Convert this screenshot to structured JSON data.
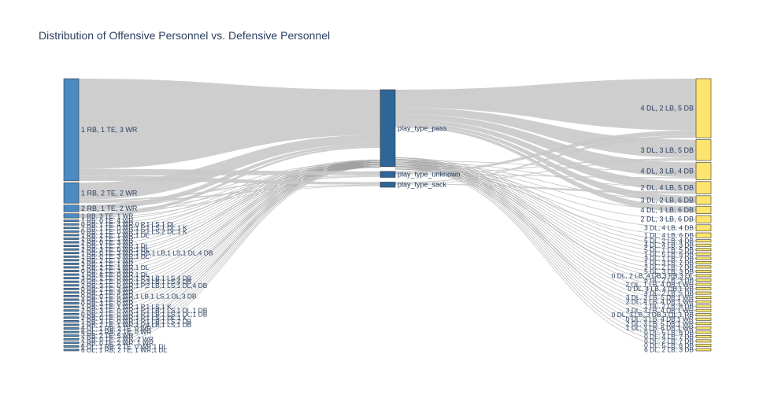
{
  "chart_data": {
    "type": "sankey",
    "title": "Distribution of Offensive Personnel vs. Defensive Personnel",
    "colors": {
      "offense": "#4b8bc4",
      "play": "#2f6698",
      "defense": "#fde46f",
      "link": "#c9c9c9",
      "thin_link": "#9a9a9a",
      "node_stroke": "#333333"
    },
    "offense_nodes": [
      {
        "label": "1 RB, 1 TE, 3 WR",
        "value": 60
      },
      {
        "label": "1 RB, 2 TE, 2 WR",
        "value": 12
      },
      {
        "label": "2 RB, 1 TE, 2 WR",
        "value": 4
      },
      {
        "label": "1 RB, 3 TE, 1 WR",
        "value": 2.5
      },
      {
        "label": "1 RB, 0 TE, 4 WR",
        "value": 1
      },
      {
        "label": "0 RB, 1 TE, 4 WR,0 P,1 LS,1 DL",
        "value": 1
      },
      {
        "label": "2 RB, 1 TE, 0 WR,1 P,1 LS,1 DL,1 K",
        "value": 1
      },
      {
        "label": "0 RB, 1 TE, 0 WR,1 P,1 LS,2 DL,1 K",
        "value": 1
      },
      {
        "label": "1 RB, 2 TE, 1 WR,1 DL",
        "value": 1
      },
      {
        "label": "2 RB, 2 TE, 1 WR",
        "value": 1
      },
      {
        "label": "2 RB, 0 TE, 3 WR",
        "value": 1
      },
      {
        "label": "1 RB, 1 TE, 2 WR,1 DL",
        "value": 1
      },
      {
        "label": "2 RB, 3 TE, 0 WR,1 DL",
        "value": 1
      },
      {
        "label": "1 RB, 0 TE, 3 WR,1 DB,1 LB,1 LS,1 DL,4 DB",
        "value": 1
      },
      {
        "label": "1 RB, 0 TE, 3 WR,1 DL",
        "value": 1
      },
      {
        "label": "2 RB, 2 TE, 1 WR",
        "value": 1
      },
      {
        "label": "3 RB, 1 TE, 1 WR",
        "value": 1
      },
      {
        "label": "1 RB, 2 TE, 1 WR,1 DL",
        "value": 1
      },
      {
        "label": "0 RB, 2 TE, 3 WR",
        "value": 1
      },
      {
        "label": "1 RB, 4 TE, 0 WR,1 DL",
        "value": 1
      },
      {
        "label": "3 RB, 2 TE, 0 WR,1 P,3 LB,1 LS,4 DB",
        "value": 1
      },
      {
        "label": "0 RB, 2 TE, 0 WR,1 P,3 LB,1 LS,4 DB",
        "value": 1
      },
      {
        "label": "2 RB, 3 TE, 0 WR,1 P,2 LB,1 LS,1 DL,4 DB",
        "value": 1
      },
      {
        "label": "0 RB, 2 TE, 3 WR",
        "value": 1
      },
      {
        "label": "0 RB, 1 TE, 3 WR",
        "value": 1
      },
      {
        "label": "0 RB, 0 TE, 5 WR,1 LB,1 LS,1 DL,3 DB",
        "value": 1
      },
      {
        "label": "4 RB, 1 TE, 0 WR",
        "value": 1
      },
      {
        "label": "0 RB, 3 TE, 0 WR",
        "value": 1
      },
      {
        "label": "1 RB, 2 TE, 1 WR,1 P,1 LS,1 K",
        "value": 1
      },
      {
        "label": "2 RB, 3 TE, 0 WR,1 P,1 LB,1 LS,1 DL,1 DB",
        "value": 1
      },
      {
        "label": "0 RB, 3 TE, 0 WR,1 P,1 LB,1 LS,1 DL,1 DB",
        "value": 1
      },
      {
        "label": "2 RB, 0 TE, 0 WR,1 P,1 LS,1 DL,1 K",
        "value": 1
      },
      {
        "label": "1 RB, 3 TE, 0 WR,1 P,1 LB,1 LS,2 DB",
        "value": 1
      },
      {
        "label": "1 RB, 2 TE, 1 WR,1 P,4 LB,1 LS,1 DB",
        "value": 1
      },
      {
        "label": "6 OL, 1 RB, 2 TE, 0 WR",
        "value": 1
      },
      {
        "label": "6 OL, 2 RB, 2 TE, 0 WR",
        "value": 1
      },
      {
        "label": "2 RB, 2 TE, 5 WR",
        "value": 1
      },
      {
        "label": "2 RB, 0 TE, 2 WR, 2 WR",
        "value": 1
      },
      {
        "label": "2 RB, 0 TE, 2 WR, 1 WR",
        "value": 1
      },
      {
        "label": "6 OL, 1 RB, 2 TE, 0 WR,1 DL",
        "value": 1
      },
      {
        "label": "6 OL, 1 RB, 2 TE, 1 WR,1 DL",
        "value": 1
      }
    ],
    "play_nodes": [
      {
        "label": "play_type_pass",
        "value": 90
      },
      {
        "label": "play_type_unknown",
        "value": 7
      },
      {
        "label": "play_type_sack",
        "value": 6
      }
    ],
    "defense_nodes": [
      {
        "label": "4 DL, 2 LB, 5 DB",
        "value": 24
      },
      {
        "label": "3 DL, 3 LB, 5 DB",
        "value": 8.5
      },
      {
        "label": "4 DL, 3 LB, 4 DB",
        "value": 7
      },
      {
        "label": "2 DL, 4 LB, 5 DB",
        "value": 5
      },
      {
        "label": "3 DL, 2 LB, 6 DB",
        "value": 3.5
      },
      {
        "label": "4 DL, 1 LB, 6 DB",
        "value": 3
      },
      {
        "label": "2 DL, 3 LB, 6 DB",
        "value": 3
      },
      {
        "label": "3 DL, 4 LB, 4 DB",
        "value": 2.5
      },
      {
        "label": "1 DL, 4 LB, 6 DB",
        "value": 2
      },
      {
        "label": "5 DL, 2 LB, 4 DB",
        "value": 1
      },
      {
        "label": "4 DL, 4 LB, 3 DB",
        "value": 1
      },
      {
        "label": "5 DL, 1 LB, 5 DB",
        "value": 1
      },
      {
        "label": "1 DL, 5 LB, 5 DB",
        "value": 1
      },
      {
        "label": "3 DL, 1 LB, 7 DB",
        "value": 1
      },
      {
        "label": "1 DL, 3 LB, 7 DB",
        "value": 1
      },
      {
        "label": "2 DL, 2 LB, 7 DB",
        "value": 1
      },
      {
        "label": "5 DL, 3 LB, 3 DB",
        "value": 1
      },
      {
        "label": "0 DL, 2 LB, 4 DB,3 RB,3 OL",
        "value": 1
      },
      {
        "label": "6 DL, 2 LB, 3 DB",
        "value": 1
      },
      {
        "label": "2 OL, 1 LB, 4 DB,1 WR",
        "value": 1
      },
      {
        "label": "0 DL, 4 LB, 4 DB,1 RB",
        "value": 1
      },
      {
        "label": "4 DL, 2 LB, 5 DB",
        "value": 1
      },
      {
        "label": "3 DL, 3 LB, 5 DB,1 WR",
        "value": 1
      },
      {
        "label": "2 DL, 4 LB, 4 DB,1 WR",
        "value": 1
      },
      {
        "label": "1 DL, 2 LB, 8 DB",
        "value": 1
      },
      {
        "label": "3 DL, 3 LB, 4 DB,1 WR",
        "value": 1
      },
      {
        "label": "0 DL, 3 LB, 3 DB,3 OL,1 RB",
        "value": 1
      },
      {
        "label": "0 DL, 3 LB, 4 DB,1 WR",
        "value": 1
      },
      {
        "label": "2 DL, 3 LB, 5 DB,1 WR",
        "value": 1
      },
      {
        "label": "1 DL, 3 LB, 6 DB,1 WR",
        "value": 1
      },
      {
        "label": "0 DL, 5 LB, 6 DB",
        "value": 1
      },
      {
        "label": "0 DL, 4 LB, 7 DB",
        "value": 1
      },
      {
        "label": "0 DL, 2 LB, 7 DB",
        "value": 1
      },
      {
        "label": "0 DL, 5 LB, 6 DB",
        "value": 1
      },
      {
        "label": "6 DL, 2 LB, 3 DB",
        "value": 1
      }
    ],
    "links_offense_to_play": [
      {
        "source": 0,
        "target": 0,
        "value": 53
      },
      {
        "source": 0,
        "target": 1,
        "value": 4
      },
      {
        "source": 0,
        "target": 2,
        "value": 3
      },
      {
        "source": 1,
        "target": 0,
        "value": 10
      },
      {
        "source": 1,
        "target": 1,
        "value": 1
      },
      {
        "source": 1,
        "target": 2,
        "value": 1
      },
      {
        "source": 2,
        "target": 0,
        "value": 3
      },
      {
        "source": 2,
        "target": 1,
        "value": 0.5
      },
      {
        "source": 2,
        "target": 2,
        "value": 0.5
      },
      {
        "source": 3,
        "target": 0,
        "value": 2
      },
      {
        "source": 3,
        "target": 1,
        "value": 0.5
      }
    ],
    "links_play_to_defense": [
      {
        "source": 0,
        "target": 0,
        "value": 21
      },
      {
        "source": 0,
        "target": 1,
        "value": 7.5
      },
      {
        "source": 0,
        "target": 2,
        "value": 6
      },
      {
        "source": 0,
        "target": 3,
        "value": 4
      },
      {
        "source": 0,
        "target": 4,
        "value": 3
      },
      {
        "source": 0,
        "target": 5,
        "value": 2.5
      },
      {
        "source": 1,
        "target": 0,
        "value": 2
      },
      {
        "source": 1,
        "target": 1,
        "value": 0.5
      },
      {
        "source": 1,
        "target": 2,
        "value": 0.5
      },
      {
        "source": 2,
        "target": 0,
        "value": 1
      },
      {
        "source": 2,
        "target": 1,
        "value": 0.5
      },
      {
        "source": 2,
        "target": 3,
        "value": 1
      }
    ]
  }
}
